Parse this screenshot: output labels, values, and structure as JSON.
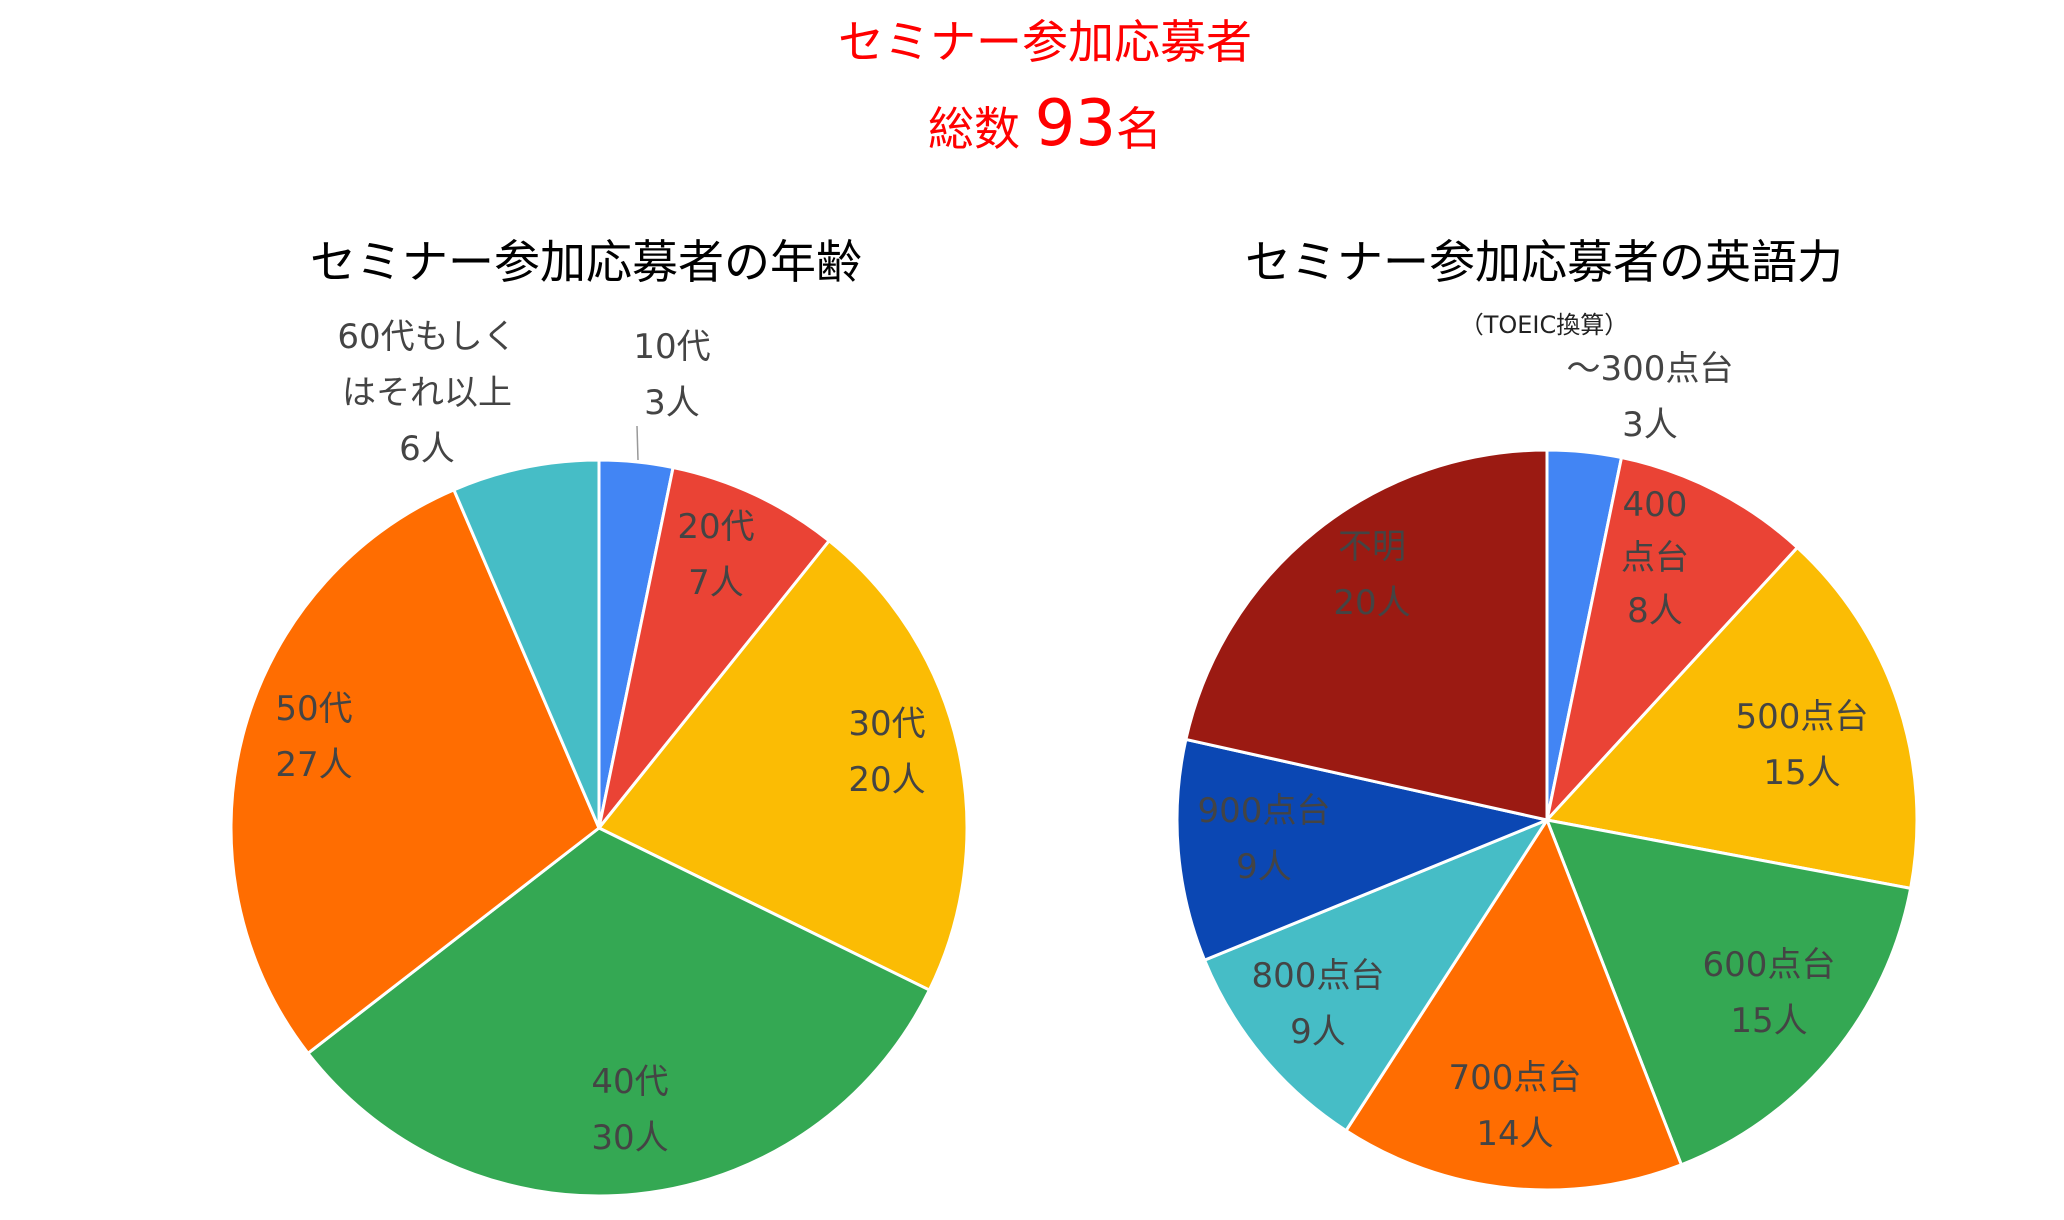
{
  "header": {
    "title": "セミナー参加応募者",
    "total_prefix": "総数 ",
    "total_value": "93",
    "total_suffix": "名"
  },
  "chart_data": [
    {
      "type": "pie",
      "title": "セミナー参加応募者の年齢",
      "categories": [
        "10代",
        "20代",
        "30代",
        "40代",
        "50代",
        "60代もしくはそれ以上"
      ],
      "values": [
        3,
        7,
        20,
        30,
        27,
        6
      ],
      "colors": [
        "#4285f4",
        "#ea4335",
        "#fbbc04",
        "#34a853",
        "#ff6d01",
        "#46bdc6"
      ],
      "data_labels": [
        {
          "lines": [
            "10代",
            "3人"
          ],
          "color": "#444444"
        },
        {
          "lines": [
            "20代",
            "7人"
          ],
          "color": "#444444"
        },
        {
          "lines": [
            "30代",
            "20人"
          ],
          "color": "#444444"
        },
        {
          "lines": [
            "40代",
            "30人"
          ],
          "color": "#444444"
        },
        {
          "lines": [
            "50代",
            "27人"
          ],
          "color": "#444444"
        },
        {
          "lines": [
            "60代もしく",
            "はそれ以上",
            "6人"
          ],
          "color": "#444444"
        }
      ]
    },
    {
      "type": "pie",
      "title": "セミナー参加応募者の英語力",
      "subtitle": "（TOEIC換算）",
      "categories": [
        "～300点台",
        "400点台",
        "500点台",
        "600点台",
        "700点台",
        "800点台",
        "900点台",
        "不明"
      ],
      "values": [
        3,
        8,
        15,
        15,
        14,
        9,
        9,
        20
      ],
      "colors": [
        "#4285f4",
        "#ea4335",
        "#fbbc04",
        "#34a853",
        "#ff6d01",
        "#46bdc6",
        "#0b47b3",
        "#9b1a12"
      ],
      "data_labels": [
        {
          "lines": [
            "～300点台",
            "3人"
          ],
          "color": "#444444"
        },
        {
          "lines": [
            "400",
            "点台",
            "8人"
          ],
          "color": "#444444"
        },
        {
          "lines": [
            "500点台",
            "15人"
          ],
          "color": "#444444"
        },
        {
          "lines": [
            "600点台",
            "15人"
          ],
          "color": "#444444"
        },
        {
          "lines": [
            "700点台",
            "14人"
          ],
          "color": "#444444"
        },
        {
          "lines": [
            "800点台",
            "9人"
          ],
          "color": "#444444"
        },
        {
          "lines": [
            "900点台",
            "9人"
          ],
          "color": "#000000"
        },
        {
          "lines": [
            "不明",
            "20人"
          ],
          "color": "#ffffff"
        }
      ]
    }
  ]
}
